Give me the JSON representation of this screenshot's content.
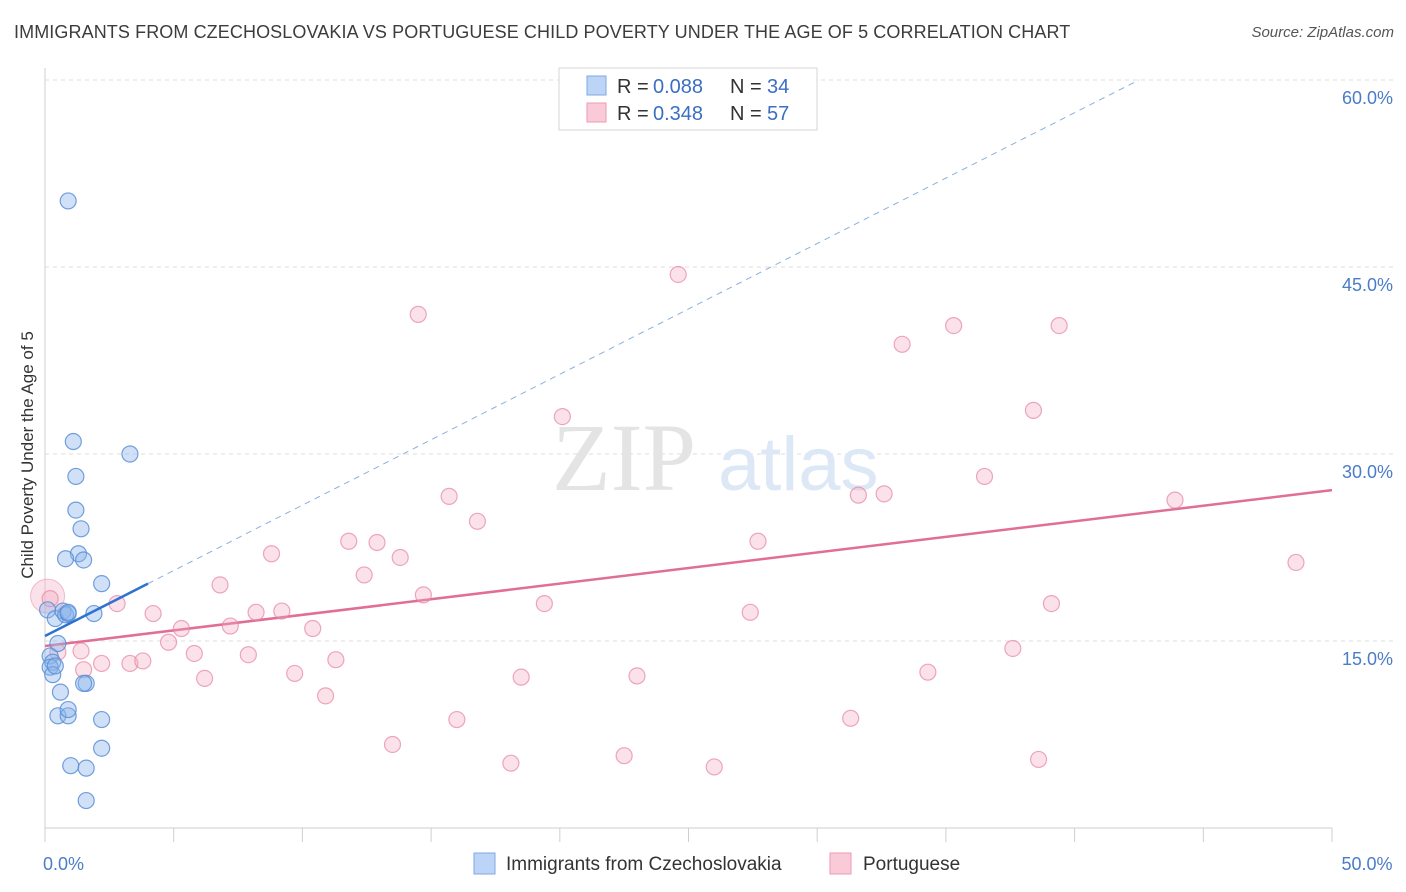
{
  "header": {
    "title": "IMMIGRANTS FROM CZECHOSLOVAKIA VS PORTUGUESE CHILD POVERTY UNDER THE AGE OF 5 CORRELATION CHART",
    "source": "Source: ZipAtlas.com"
  },
  "watermark": {
    "zip": "ZIP",
    "atlas": "atlas"
  },
  "legend": {
    "r_label": "R =",
    "n_label": "N =",
    "entries": [
      {
        "r": "0.088",
        "n": "34",
        "color": "#8ab4ec"
      },
      {
        "r": "0.348",
        "n": "57",
        "color": "#f4a9c0"
      }
    ]
  },
  "chart_data": {
    "type": "scatter",
    "title": "IMMIGRANTS FROM CZECHOSLOVAKIA VS PORTUGUESE CHILD POVERTY UNDER THE AGE OF 5 CORRELATION CHART",
    "xlabel": "",
    "ylabel": "Child Poverty Under the Age of 5",
    "xlim": [
      0,
      50
    ],
    "ylim": [
      0,
      60
    ],
    "x_ticks_labeled": [
      {
        "value": 0,
        "label": "0.0%"
      },
      {
        "value": 50,
        "label": "50.0%"
      }
    ],
    "y_ticks": [
      {
        "value": 15,
        "label": "15.0%"
      },
      {
        "value": 30,
        "label": "30.0%"
      },
      {
        "value": 45,
        "label": "45.0%"
      },
      {
        "value": 60,
        "label": "60.0%"
      }
    ],
    "grid": "horizontal dashed",
    "legend_position": "top-center",
    "series": [
      {
        "name": "Immigrants from Czechoslovakia",
        "color": "#8ab4ec",
        "stroke": "#5b8fd6",
        "points": [
          [
            0.9,
            50.3
          ],
          [
            0.1,
            17.5
          ],
          [
            0.2,
            13.8
          ],
          [
            0.3,
            13.3
          ],
          [
            0.2,
            12.9
          ],
          [
            0.3,
            12.3
          ],
          [
            0.4,
            16.8
          ],
          [
            0.5,
            14.8
          ],
          [
            0.6,
            10.9
          ],
          [
            0.5,
            9.0
          ],
          [
            0.7,
            17.4
          ],
          [
            0.8,
            17.1
          ],
          [
            0.9,
            17.2
          ],
          [
            0.9,
            9.0
          ],
          [
            0.9,
            9.5
          ],
          [
            1.0,
            5.0
          ],
          [
            1.1,
            31.0
          ],
          [
            1.2,
            28.2
          ],
          [
            1.2,
            25.5
          ],
          [
            1.3,
            22.0
          ],
          [
            1.5,
            21.5
          ],
          [
            0.8,
            21.6
          ],
          [
            1.4,
            24.0
          ],
          [
            1.6,
            4.8
          ],
          [
            1.6,
            11.6
          ],
          [
            1.9,
            17.2
          ],
          [
            1.6,
            2.2
          ],
          [
            2.2,
            19.6
          ],
          [
            2.2,
            6.4
          ],
          [
            2.2,
            8.7
          ],
          [
            3.3,
            30.0
          ],
          [
            0.9,
            17.3
          ],
          [
            0.4,
            13.0
          ],
          [
            1.5,
            11.6
          ]
        ],
        "trend_solid": [
          [
            0,
            15.4
          ],
          [
            4,
            19.6
          ]
        ],
        "trend_dashed": [
          [
            4,
            19.6
          ],
          [
            42.5,
            60
          ]
        ]
      },
      {
        "name": "Portuguese",
        "color": "#f4a9c0",
        "stroke": "#e6849f",
        "points": [
          [
            0.2,
            18.4
          ],
          [
            0.5,
            14.1
          ],
          [
            1.4,
            14.2
          ],
          [
            1.5,
            12.7
          ],
          [
            2.2,
            13.2
          ],
          [
            2.8,
            18.0
          ],
          [
            3.3,
            13.2
          ],
          [
            3.8,
            13.4
          ],
          [
            4.2,
            17.2
          ],
          [
            4.8,
            14.9
          ],
          [
            5.3,
            16.0
          ],
          [
            5.8,
            14.0
          ],
          [
            6.2,
            12.0
          ],
          [
            6.8,
            19.5
          ],
          [
            7.2,
            16.2
          ],
          [
            7.9,
            13.9
          ],
          [
            8.2,
            17.3
          ],
          [
            8.8,
            22.0
          ],
          [
            9.2,
            17.4
          ],
          [
            9.7,
            12.4
          ],
          [
            10.4,
            16.0
          ],
          [
            10.9,
            10.6
          ],
          [
            11.3,
            13.5
          ],
          [
            11.8,
            23.0
          ],
          [
            12.4,
            20.3
          ],
          [
            12.9,
            22.9
          ],
          [
            13.5,
            6.7
          ],
          [
            13.8,
            21.7
          ],
          [
            14.5,
            41.2
          ],
          [
            14.7,
            18.7
          ],
          [
            15.7,
            26.6
          ],
          [
            16.0,
            8.7
          ],
          [
            16.8,
            24.6
          ],
          [
            18.1,
            5.2
          ],
          [
            18.5,
            12.1
          ],
          [
            19.4,
            18.0
          ],
          [
            20.1,
            33.0
          ],
          [
            22.5,
            5.8
          ],
          [
            23.0,
            12.2
          ],
          [
            24.6,
            44.4
          ],
          [
            26.0,
            4.9
          ],
          [
            27.4,
            17.3
          ],
          [
            27.7,
            23.0
          ],
          [
            31.3,
            8.8
          ],
          [
            31.6,
            26.7
          ],
          [
            32.6,
            26.8
          ],
          [
            33.3,
            38.8
          ],
          [
            34.3,
            12.5
          ],
          [
            35.3,
            40.3
          ],
          [
            36.5,
            28.2
          ],
          [
            37.6,
            14.4
          ],
          [
            38.4,
            33.5
          ],
          [
            38.6,
            5.5
          ],
          [
            39.1,
            18.0
          ],
          [
            39.4,
            40.3
          ],
          [
            43.9,
            26.3
          ],
          [
            48.6,
            21.3
          ]
        ],
        "trend_solid": [
          [
            0,
            14.6
          ],
          [
            50,
            27.1
          ]
        ]
      }
    ]
  },
  "bottom_legend": [
    {
      "label": "Immigrants from Czechoslovakia",
      "color": "#8ab4ec",
      "stroke": "#5b8fd6"
    },
    {
      "label": "Portuguese",
      "color": "#f4a9c0",
      "stroke": "#e6849f"
    }
  ]
}
